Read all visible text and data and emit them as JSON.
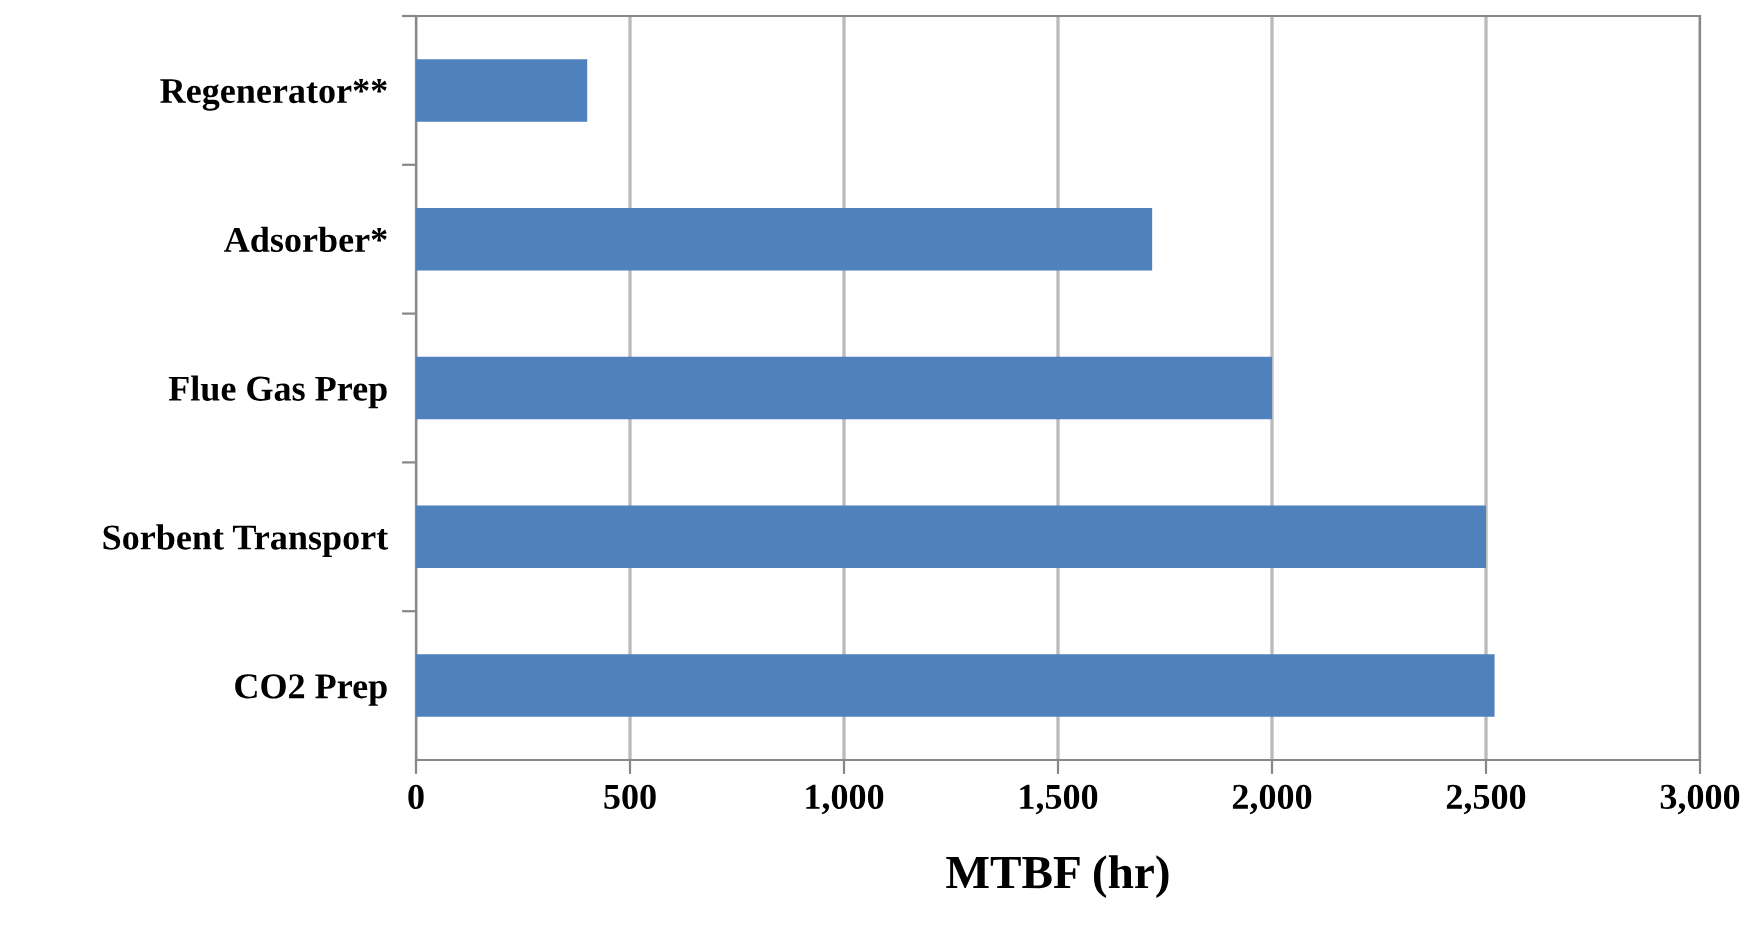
{
  "chart_data": {
    "type": "bar",
    "orientation": "horizontal",
    "xlabel": "MTBF (hr)",
    "categories": [
      "Regenerator**",
      "Adsorber*",
      "Flue Gas Prep",
      "Sorbent Transport",
      "CO2 Prep"
    ],
    "values": [
      400,
      1720,
      2000,
      2500,
      2520
    ],
    "color": "#4f81bd",
    "xlim": [
      0,
      3000
    ],
    "xticks": [
      {
        "value": 0,
        "label": "0"
      },
      {
        "value": 500,
        "label": "500"
      },
      {
        "value": 1000,
        "label": "1,000"
      },
      {
        "value": 1500,
        "label": "1,500"
      },
      {
        "value": 2000,
        "label": "2,000"
      },
      {
        "value": 2500,
        "label": "2,500"
      },
      {
        "value": 3000,
        "label": "3,000"
      }
    ],
    "grid": "x"
  }
}
